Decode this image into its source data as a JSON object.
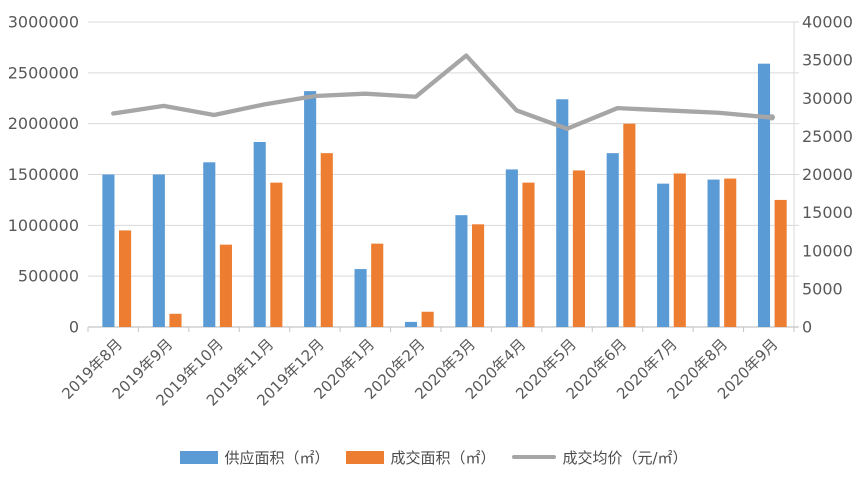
{
  "page": {
    "background": "#ffffff",
    "title": ""
  },
  "chart_data": {
    "type": "combo",
    "title": "",
    "xlabel": "",
    "ylabel_left": "",
    "ylabel_right": "",
    "grid": true,
    "legend_position": "bottom",
    "categories": [
      "2019年8月",
      "2019年9月",
      "2019年10月",
      "2019年11月",
      "2019年12月",
      "2020年1月",
      "2020年2月",
      "2020年3月",
      "2020年4月",
      "2020年5月",
      "2020年6月",
      "2020年7月",
      "2020年8月",
      "2020年9月"
    ],
    "series": [
      {
        "name": "供应面积（㎡）",
        "type": "bar",
        "axis": "left",
        "color": "#5B9BD5",
        "values": [
          1500000,
          1500000,
          1620000,
          1820000,
          2320000,
          570000,
          50000,
          1100000,
          1550000,
          2240000,
          1710000,
          1410000,
          1450000,
          2590000
        ]
      },
      {
        "name": "成交面积（㎡）",
        "type": "bar",
        "axis": "left",
        "color": "#ED7D31",
        "values": [
          950000,
          130000,
          810000,
          1420000,
          1710000,
          820000,
          150000,
          1010000,
          1420000,
          1540000,
          2000000,
          1510000,
          1460000,
          1250000
        ]
      },
      {
        "name": "成交均价（元/㎡）",
        "type": "line",
        "axis": "right",
        "color": "#A6A6A6",
        "values": [
          28000,
          29000,
          27800,
          29200,
          30300,
          30600,
          30200,
          35600,
          28400,
          26000,
          28700,
          28400,
          28100,
          27500
        ]
      }
    ],
    "left_axis": {
      "min": 0,
      "max": 3000000,
      "step": 500000
    },
    "right_axis": {
      "min": 0,
      "max": 40000,
      "step": 5000
    },
    "style": {
      "gridline_color": "#D9D9D9",
      "axis_line_color": "#C5C5C5",
      "tick_color": "#C5C5C5",
      "label_color": "#595959"
    }
  }
}
